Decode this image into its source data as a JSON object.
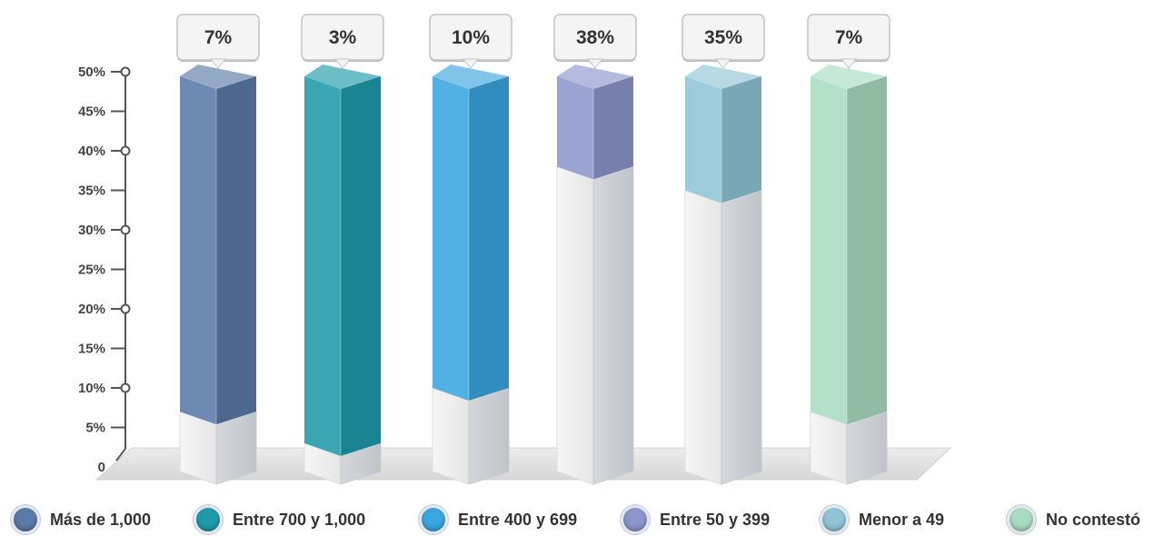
{
  "chart_data": {
    "type": "bar",
    "categories": [
      "Más de 1,000",
      "Entre 700 y 1,000",
      "Entre 400 y 699",
      "Entre 50 y 399",
      "Menor a 49",
      "No contestó"
    ],
    "values": [
      7,
      3,
      10,
      38,
      35,
      7
    ],
    "value_labels": [
      "7%",
      "3%",
      "10%",
      "38%",
      "35%",
      "7%"
    ],
    "title": "",
    "xlabel": "",
    "ylabel": "",
    "ylim": [
      0,
      50
    ],
    "y_ticks": [
      {
        "value": 0,
        "label": "0"
      },
      {
        "value": 5,
        "label": "5%"
      },
      {
        "value": 10,
        "label": "10%"
      },
      {
        "value": 15,
        "label": "15%"
      },
      {
        "value": 20,
        "label": "20%"
      },
      {
        "value": 25,
        "label": "25%"
      },
      {
        "value": 30,
        "label": "30%"
      },
      {
        "value": 35,
        "label": "35%"
      },
      {
        "value": 40,
        "label": "40%"
      },
      {
        "value": 45,
        "label": "45%"
      },
      {
        "value": 50,
        "label": "50%"
      }
    ],
    "grid": false,
    "legend_position": "bottom",
    "colors": [
      "#5a7aa8",
      "#1f9aaa",
      "#3aa6e0",
      "#8c96cc",
      "#8fc4d6",
      "#a8dcc0"
    ]
  }
}
